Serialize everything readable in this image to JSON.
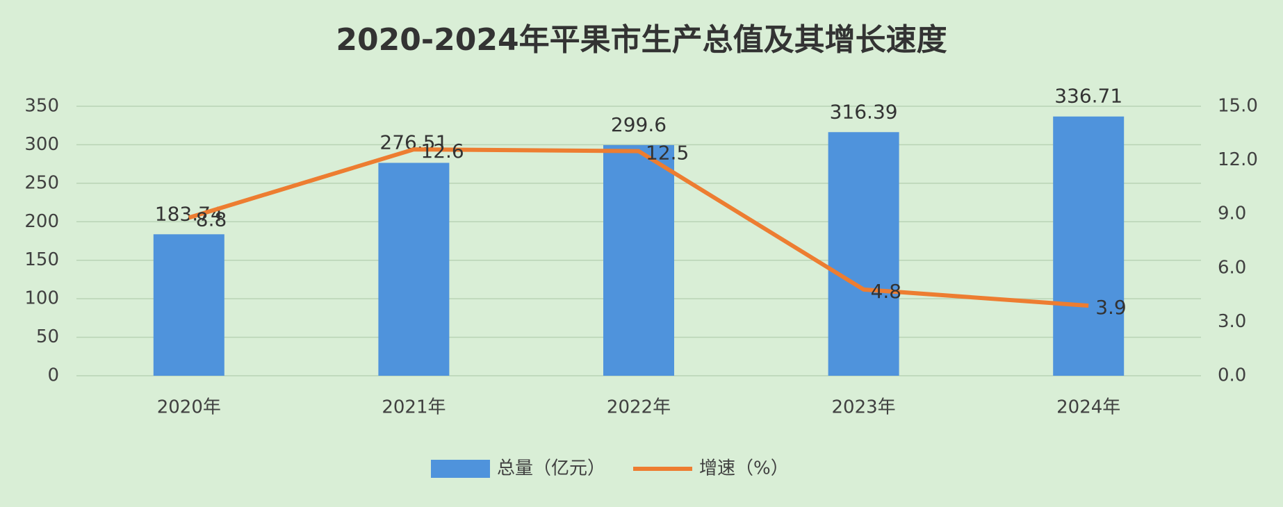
{
  "chart_data": {
    "type": "bar",
    "title": "2020-2024年平果市生产总值及其增长速度",
    "categories": [
      "2020年",
      "2021年",
      "2022年",
      "2023年",
      "2024年"
    ],
    "series": [
      {
        "name": "总量（亿元）",
        "type": "bar",
        "color": "#4f93dc",
        "values": [
          183.74,
          276.51,
          299.6,
          316.39,
          336.71
        ]
      },
      {
        "name": "增速（%）",
        "type": "line",
        "axis": "y2",
        "color": "#ed7d31",
        "values": [
          8.8,
          12.6,
          12.5,
          4.8,
          3.9
        ]
      }
    ],
    "ylim": [
      0,
      350
    ],
    "yticks": [
      0,
      50,
      100,
      150,
      200,
      250,
      300,
      350
    ],
    "y2lim": [
      0,
      15
    ],
    "y2ticks": [
      {
        "value": 0,
        "label": "0.0"
      },
      {
        "value": 3,
        "label": "3.0"
      },
      {
        "value": 6,
        "label": "6.0"
      },
      {
        "value": 9,
        "label": "9.0"
      },
      {
        "value": 12,
        "label": "12.0"
      },
      {
        "value": 15,
        "label": "15.0"
      }
    ],
    "grid": true,
    "legend": "bottom"
  }
}
